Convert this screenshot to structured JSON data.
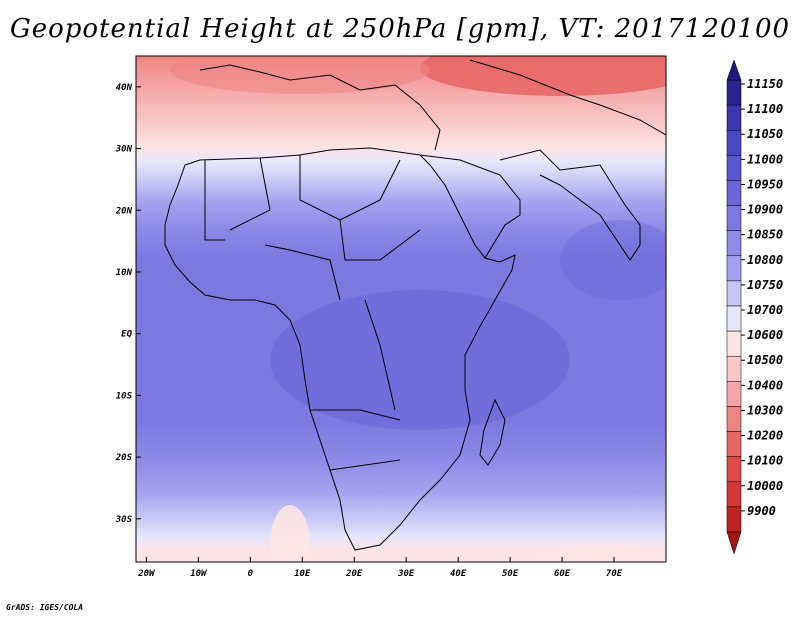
{
  "title": "Geopotential Height at 250hPa [gpm], VT: 2017120100",
  "credit": "GrADS: IGES/COLA",
  "map": {
    "lat_ticks": [
      "40N",
      "30N",
      "20N",
      "10N",
      "EQ",
      "10S",
      "20S",
      "30S"
    ],
    "lat_values": [
      40,
      30,
      20,
      10,
      0,
      -10,
      -20,
      -30
    ],
    "lon_ticks": [
      "20W",
      "10W",
      "0",
      "10E",
      "20E",
      "30E",
      "40E",
      "50E",
      "60E",
      "70E"
    ],
    "lon_values": [
      -20,
      -10,
      0,
      10,
      20,
      30,
      40,
      50,
      60,
      70
    ],
    "extent": {
      "lon_min": -22,
      "lon_max": 80,
      "lat_min": -37,
      "lat_max": 45
    }
  },
  "colorbar": {
    "labels": [
      "11150",
      "11100",
      "11050",
      "11000",
      "10950",
      "10900",
      "10850",
      "10800",
      "10750",
      "10700",
      "10600",
      "10500",
      "10400",
      "10300",
      "10200",
      "10100",
      "10000",
      "9900"
    ],
    "colors": [
      "#29238f",
      "#3a35ae",
      "#4b47c3",
      "#5b57cf",
      "#6a66d8",
      "#7b78e0",
      "#8d8be7",
      "#a3a2ee",
      "#c5c5f6",
      "#e6e6fb",
      "#fde4e4",
      "#f9c7c7",
      "#f4a5a5",
      "#ee8585",
      "#e86565",
      "#e04a4a",
      "#d53535",
      "#c02222"
    ]
  }
}
